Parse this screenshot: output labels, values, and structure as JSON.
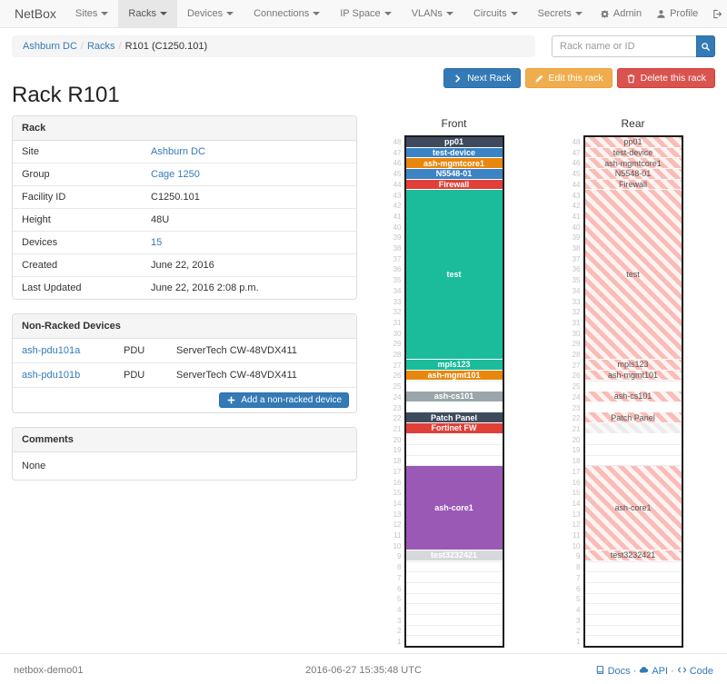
{
  "navbar": {
    "brand": "NetBox",
    "items": [
      {
        "label": "Sites",
        "active": false
      },
      {
        "label": "Racks",
        "active": true
      },
      {
        "label": "Devices",
        "active": false
      },
      {
        "label": "Connections",
        "active": false
      },
      {
        "label": "IP Space",
        "active": false
      },
      {
        "label": "VLANs",
        "active": false
      },
      {
        "label": "Circuits",
        "active": false
      },
      {
        "label": "Secrets",
        "active": false
      }
    ],
    "right": [
      {
        "label": "Admin",
        "icon": "gear-icon"
      },
      {
        "label": "Profile",
        "icon": "user-icon"
      },
      {
        "label": "Log out",
        "icon": "logout-icon"
      }
    ]
  },
  "breadcrumb": {
    "links": [
      "Ashburn DC",
      "Racks"
    ],
    "current": "R101 (C1250.101)"
  },
  "search": {
    "placeholder": "Rack name or ID",
    "button_icon": "search-icon"
  },
  "page": {
    "title": "Rack R101",
    "buttons": [
      {
        "label": "Next Rack",
        "icon": "chevron-right-icon",
        "style": "primary"
      },
      {
        "label": "Edit this rack",
        "icon": "pencil-icon",
        "style": "warning"
      },
      {
        "label": "Delete this rack",
        "icon": "trash-icon",
        "style": "danger"
      }
    ]
  },
  "rack_panel": {
    "title": "Rack",
    "rows": [
      {
        "label": "Site",
        "value": "Ashburn DC",
        "link": true
      },
      {
        "label": "Group",
        "value": "Cage 1250",
        "link": true
      },
      {
        "label": "Facility ID",
        "value": "C1250.101",
        "link": false
      },
      {
        "label": "Height",
        "value": "48U",
        "link": false
      },
      {
        "label": "Devices",
        "value": "15",
        "link": true
      },
      {
        "label": "Created",
        "value": "June 22, 2016",
        "link": false
      },
      {
        "label": "Last Updated",
        "value": "June 22, 2016 2:08 p.m.",
        "link": false
      }
    ]
  },
  "nonracked": {
    "title": "Non-Racked Devices",
    "rows": [
      {
        "name": "ash-pdu101a",
        "type": "PDU",
        "model": "ServerTech CW-48VDX411"
      },
      {
        "name": "ash-pdu101b",
        "type": "PDU",
        "model": "ServerTech CW-48VDX411"
      }
    ],
    "add_label": "Add a non-racked device",
    "add_icon": "plus-icon"
  },
  "comments": {
    "title": "Comments",
    "body": "None"
  },
  "elevations": {
    "front_title": "Front",
    "rear_title": "Rear",
    "units": 48,
    "palette": {
      "dark": "#3e4b5e",
      "blue": "#3b84c4",
      "orange": "#e8870e",
      "red": "#e04038",
      "teal": "#1abc9c",
      "gray": "#9aa6ab",
      "purple": "#9b59b6",
      "lightgray": "#d6d9dc"
    },
    "slots": [
      {
        "u": 48,
        "h": 1,
        "label": "pp01",
        "color": "dark"
      },
      {
        "u": 47,
        "h": 1,
        "label": "test-device",
        "color": "blue"
      },
      {
        "u": 46,
        "h": 1,
        "label": "ash-mgmtcore1",
        "color": "orange"
      },
      {
        "u": 45,
        "h": 1,
        "label": "N5548-01",
        "color": "blue"
      },
      {
        "u": 44,
        "h": 1,
        "label": "Firewall",
        "color": "red"
      },
      {
        "u": 43,
        "h": 16,
        "label": "test",
        "color": "teal"
      },
      {
        "u": 27,
        "h": 1,
        "label": "mpls123",
        "color": "teal"
      },
      {
        "u": 26,
        "h": 1,
        "label": "ash-mgmt101",
        "color": "orange"
      },
      {
        "u": 24,
        "h": 1,
        "label": "ash-cs101",
        "color": "gray"
      },
      {
        "u": 22,
        "h": 1,
        "label": "Patch Panel",
        "color": "dark"
      },
      {
        "u": 21,
        "h": 1,
        "label": "Fortinet FW",
        "color": "red",
        "rear": "ghost"
      },
      {
        "u": 17,
        "h": 8,
        "label": "ash-core1",
        "color": "purple"
      },
      {
        "u": 9,
        "h": 1,
        "label": "test3232421",
        "color": "lightgray",
        "front": "muted"
      }
    ]
  },
  "footer": {
    "host": "netbox-demo01",
    "timestamp": "2016-06-27 15:35:48 UTC",
    "links": [
      {
        "label": "Docs",
        "icon": "book-icon"
      },
      {
        "label": "API",
        "icon": "cloud-icon"
      },
      {
        "label": "Code",
        "icon": "code-icon"
      }
    ]
  }
}
